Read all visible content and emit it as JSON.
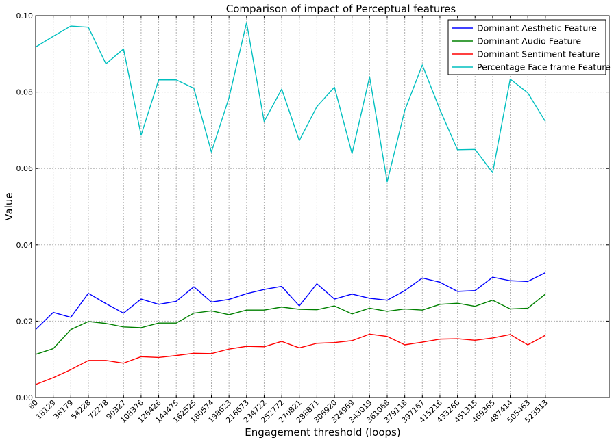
{
  "chart_data": {
    "type": "line",
    "title": "Comparison of impact of Perceptual features",
    "xlabel": "Engagement threshold (loops)",
    "ylabel": "Value",
    "categories": [
      "80",
      "18129",
      "36179",
      "54228",
      "72278",
      "90327",
      "108376",
      "126426",
      "144475",
      "162525",
      "180574",
      "198623",
      "216673",
      "234722",
      "252772",
      "270821",
      "288871",
      "306920",
      "324969",
      "343019",
      "361068",
      "379118",
      "397167",
      "415216",
      "433266",
      "451315",
      "469365",
      "487414",
      "505463",
      "523513"
    ],
    "ylim": [
      0.0,
      0.1
    ],
    "yticks": [
      "0.00",
      "0.02",
      "0.04",
      "0.06",
      "0.08",
      "0.10"
    ],
    "grid": true,
    "legend_position": "top-right",
    "series": [
      {
        "name": "Dominant Aesthetic Feature",
        "color": "#0000ff",
        "values": [
          0.0178,
          0.0223,
          0.021,
          0.0273,
          0.0246,
          0.0221,
          0.0258,
          0.0244,
          0.0252,
          0.029,
          0.025,
          0.0257,
          0.0272,
          0.0283,
          0.0291,
          0.024,
          0.0298,
          0.0258,
          0.0271,
          0.026,
          0.0255,
          0.028,
          0.0313,
          0.0302,
          0.0278,
          0.028,
          0.0315,
          0.0306,
          0.0304,
          0.0327
        ]
      },
      {
        "name": "Dominant Audio Feature",
        "color": "#008000",
        "values": [
          0.0113,
          0.0128,
          0.0178,
          0.0199,
          0.0194,
          0.0185,
          0.0183,
          0.0195,
          0.0195,
          0.0221,
          0.0227,
          0.0217,
          0.0229,
          0.0229,
          0.0237,
          0.0231,
          0.023,
          0.024,
          0.0219,
          0.0234,
          0.0226,
          0.0232,
          0.0229,
          0.0244,
          0.0247,
          0.0239,
          0.0255,
          0.0232,
          0.0234,
          0.0271
        ]
      },
      {
        "name": "Dominant Sentiment feature",
        "color": "#ff0000",
        "values": [
          0.0034,
          0.0052,
          0.0073,
          0.0097,
          0.0097,
          0.009,
          0.0107,
          0.0105,
          0.011,
          0.0116,
          0.0115,
          0.0127,
          0.0134,
          0.0133,
          0.0147,
          0.013,
          0.0142,
          0.0144,
          0.0149,
          0.0166,
          0.016,
          0.0138,
          0.0145,
          0.0153,
          0.0154,
          0.015,
          0.0156,
          0.0165,
          0.0138,
          0.0163
        ]
      },
      {
        "name": "Percentage Face frame Feature",
        "color": "#00bfbf",
        "values": [
          0.0918,
          0.0946,
          0.0973,
          0.097,
          0.0874,
          0.0913,
          0.0687,
          0.0832,
          0.0832,
          0.081,
          0.0643,
          0.0785,
          0.0982,
          0.0723,
          0.0808,
          0.0673,
          0.0762,
          0.0813,
          0.0639,
          0.084,
          0.0565,
          0.0752,
          0.0871,
          0.0754,
          0.0649,
          0.065,
          0.0589,
          0.0834,
          0.0798,
          0.0723
        ]
      }
    ]
  }
}
